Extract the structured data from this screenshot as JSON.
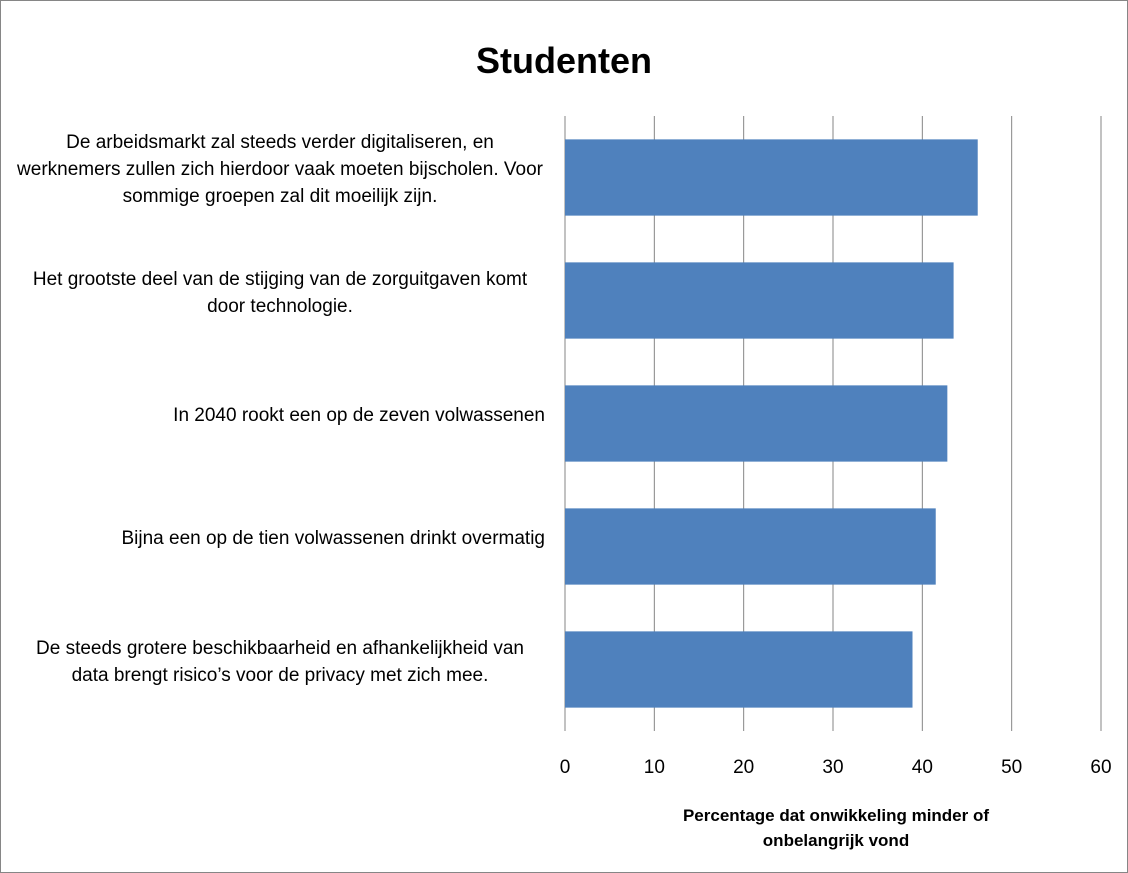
{
  "chart_data": {
    "type": "bar",
    "orientation": "horizontal",
    "title": "Studenten",
    "categories": [
      "De arbeidsmarkt zal steeds verder digitaliseren, en werknemers zullen zich hierdoor vaak moeten bijscholen. Voor sommige groepen zal dit moeilijk zijn.",
      "Het grootste deel van de stijging van de zorguitgaven komt door technologie.",
      "In 2040 rookt een op de zeven volwassenen",
      "Bijna een op de tien volwassenen drinkt overmatig",
      "De steeds grotere beschikbaarheid en afhankelijkheid van data brengt risico’s voor de privacy met zich mee."
    ],
    "values": [
      46.2,
      43.5,
      42.8,
      41.5,
      38.9
    ],
    "color": "#4f81bd",
    "xlabel": "Percentage dat onwikkeling minder of onbelangrijk vond",
    "xlim": [
      0,
      60
    ],
    "xticks": [
      0,
      10,
      20,
      30,
      40,
      50,
      60
    ],
    "grid": true
  }
}
